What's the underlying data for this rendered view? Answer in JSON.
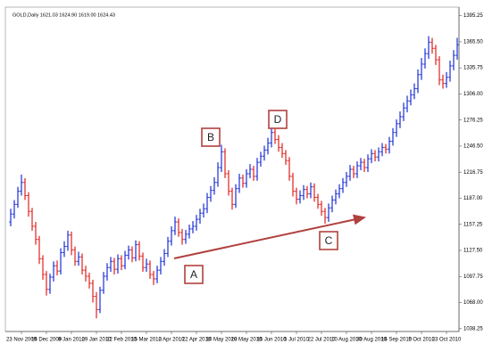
{
  "chart_data": {
    "type": "ohlc",
    "title": "GOLD,Daily  1621.03 1624.90 1619.00 1624.43",
    "categories": [
      null,
      null,
      null,
      "23 Nov 2009",
      null,
      null,
      null,
      null,
      null,
      null,
      "15 Dec 2009",
      null,
      null,
      null,
      null,
      null,
      null,
      "8 Jan 2010",
      null,
      null,
      null,
      null,
      null,
      null,
      "29 Jan 2010",
      null,
      null,
      null,
      null,
      null,
      null,
      "22 Feb 2010",
      null,
      null,
      null,
      null,
      null,
      null,
      "15 Mar 2010",
      null,
      null,
      null,
      null,
      null,
      null,
      "2 Apr 2010",
      null,
      null,
      null,
      null,
      null,
      null,
      "22 Apr 2010",
      null,
      null,
      null,
      null,
      null,
      null,
      "10 May 2010",
      null,
      null,
      null,
      null,
      null,
      null,
      "28 May 2010",
      null,
      null,
      null,
      null,
      null,
      null,
      "15 Jun 2010",
      null,
      null,
      null,
      null,
      null,
      null,
      "5 Jul 2010",
      null,
      null,
      null,
      null,
      null,
      null,
      "22 Jul 2010",
      null,
      null,
      null,
      null,
      null,
      null,
      "10 Aug 2010",
      null,
      null,
      null,
      null,
      null,
      null,
      "30 Aug 2010",
      null,
      null,
      null,
      null,
      null,
      null,
      "16 Sep 2010",
      null,
      null,
      null,
      null,
      null,
      null,
      "5 Oct 2010",
      null,
      null,
      null,
      null,
      null,
      null,
      "23 Oct 2010",
      null,
      null,
      null
    ],
    "open": [
      1160,
      1169,
      1180,
      1195,
      1205,
      1190,
      1172,
      1155,
      1140,
      1118,
      1100,
      1083,
      1097,
      1110,
      1104,
      1125,
      1132,
      1145,
      1128,
      1115,
      1120,
      1105,
      1098,
      1090,
      1075,
      1060,
      1082,
      1098,
      1108,
      1115,
      1106,
      1118,
      1110,
      1122,
      1128,
      1119,
      1134,
      1121,
      1108,
      1112,
      1100,
      1095,
      1105,
      1115,
      1124,
      1138,
      1150,
      1160,
      1148,
      1140,
      1146,
      1152,
      1155,
      1163,
      1170,
      1175,
      1188,
      1196,
      1205,
      1222,
      1240,
      1215,
      1195,
      1180,
      1198,
      1210,
      1204,
      1215,
      1220,
      1212,
      1228,
      1235,
      1242,
      1250,
      1262,
      1254,
      1245,
      1238,
      1230,
      1212,
      1195,
      1186,
      1190,
      1197,
      1192,
      1200,
      1188,
      1180,
      1172,
      1165,
      1176,
      1185,
      1192,
      1198,
      1205,
      1212,
      1220,
      1215,
      1224,
      1228,
      1222,
      1232,
      1238,
      1234,
      1240,
      1245,
      1243,
      1252,
      1262,
      1272,
      1280,
      1290,
      1298,
      1305,
      1312,
      1328,
      1340,
      1352,
      1365,
      1358,
      1345,
      1322,
      1318,
      1325,
      1338,
      1350
    ],
    "high": [
      1175,
      1185,
      1200,
      1214,
      1210,
      1194,
      1176,
      1160,
      1144,
      1122,
      1104,
      1101,
      1115,
      1116,
      1130,
      1138,
      1150,
      1149,
      1132,
      1126,
      1124,
      1110,
      1102,
      1094,
      1080,
      1086,
      1103,
      1113,
      1120,
      1119,
      1123,
      1122,
      1127,
      1133,
      1132,
      1139,
      1138,
      1125,
      1118,
      1116,
      1104,
      1110,
      1120,
      1129,
      1143,
      1155,
      1166,
      1164,
      1152,
      1151,
      1157,
      1161,
      1168,
      1175,
      1181,
      1193,
      1201,
      1211,
      1228,
      1248,
      1244,
      1219,
      1199,
      1203,
      1215,
      1214,
      1220,
      1226,
      1224,
      1233,
      1240,
      1247,
      1256,
      1268,
      1266,
      1259,
      1250,
      1242,
      1234,
      1216,
      1199,
      1196,
      1202,
      1201,
      1205,
      1204,
      1192,
      1184,
      1176,
      1181,
      1190,
      1197,
      1203,
      1210,
      1217,
      1225,
      1224,
      1229,
      1233,
      1232,
      1237,
      1243,
      1242,
      1245,
      1250,
      1249,
      1257,
      1267,
      1277,
      1286,
      1296,
      1304,
      1311,
      1318,
      1334,
      1347,
      1358,
      1372,
      1370,
      1362,
      1349,
      1328,
      1331,
      1344,
      1356,
      1370
    ],
    "low": [
      1155,
      1164,
      1176,
      1190,
      1185,
      1166,
      1150,
      1134,
      1112,
      1094,
      1076,
      1078,
      1092,
      1099,
      1100,
      1120,
      1127,
      1122,
      1110,
      1110,
      1100,
      1092,
      1084,
      1068,
      1050,
      1056,
      1078,
      1093,
      1103,
      1100,
      1101,
      1105,
      1106,
      1117,
      1114,
      1115,
      1116,
      1103,
      1103,
      1095,
      1088,
      1090,
      1100,
      1110,
      1120,
      1133,
      1145,
      1143,
      1134,
      1135,
      1141,
      1147,
      1150,
      1158,
      1165,
      1170,
      1183,
      1191,
      1200,
      1217,
      1210,
      1190,
      1174,
      1176,
      1193,
      1199,
      1199,
      1210,
      1207,
      1207,
      1223,
      1230,
      1237,
      1245,
      1249,
      1240,
      1233,
      1225,
      1207,
      1189,
      1180,
      1181,
      1185,
      1187,
      1187,
      1183,
      1175,
      1167,
      1158,
      1160,
      1171,
      1180,
      1187,
      1193,
      1200,
      1207,
      1210,
      1210,
      1219,
      1217,
      1217,
      1227,
      1229,
      1229,
      1235,
      1238,
      1238,
      1247,
      1257,
      1267,
      1275,
      1285,
      1293,
      1300,
      1307,
      1322,
      1335,
      1346,
      1352,
      1339,
      1316,
      1312,
      1313,
      1320,
      1333,
      1345
    ],
    "close": [
      1169,
      1180,
      1195,
      1205,
      1190,
      1172,
      1155,
      1140,
      1118,
      1100,
      1083,
      1097,
      1110,
      1104,
      1125,
      1132,
      1145,
      1128,
      1115,
      1120,
      1105,
      1098,
      1090,
      1075,
      1060,
      1082,
      1098,
      1108,
      1115,
      1106,
      1118,
      1110,
      1122,
      1128,
      1119,
      1134,
      1121,
      1108,
      1112,
      1100,
      1095,
      1105,
      1115,
      1124,
      1138,
      1150,
      1160,
      1148,
      1140,
      1146,
      1152,
      1155,
      1163,
      1170,
      1175,
      1188,
      1196,
      1205,
      1222,
      1240,
      1215,
      1195,
      1180,
      1198,
      1210,
      1204,
      1215,
      1220,
      1212,
      1228,
      1235,
      1242,
      1250,
      1262,
      1254,
      1245,
      1238,
      1230,
      1212,
      1195,
      1186,
      1190,
      1197,
      1192,
      1200,
      1188,
      1180,
      1172,
      1165,
      1176,
      1185,
      1192,
      1198,
      1205,
      1212,
      1220,
      1215,
      1224,
      1228,
      1222,
      1232,
      1238,
      1234,
      1240,
      1245,
      1243,
      1252,
      1262,
      1272,
      1280,
      1290,
      1298,
      1305,
      1312,
      1328,
      1340,
      1352,
      1365,
      1358,
      1345,
      1322,
      1318,
      1325,
      1338,
      1350,
      1362
    ],
    "up_color": "#1a2fd6",
    "down_color": "#e0201c",
    "ylim": [
      1035,
      1403
    ],
    "yticks": [
      1395.25,
      {
        "value": 1365.5,
        "label": "1365.50"
      },
      1335.75,
      {
        "value": 1306,
        "label": "1306.00"
      },
      1276.25,
      {
        "value": 1246.5,
        "label": "1246.50"
      },
      1216.75,
      {
        "value": 1187,
        "label": "1187.00"
      },
      1157.25,
      {
        "value": 1127.5,
        "label": "1127.50"
      },
      1097.75,
      {
        "value": 1068,
        "label": "1068.00"
      },
      1038.25
    ],
    "annotations": [
      "A",
      "B",
      "C",
      "D"
    ]
  }
}
